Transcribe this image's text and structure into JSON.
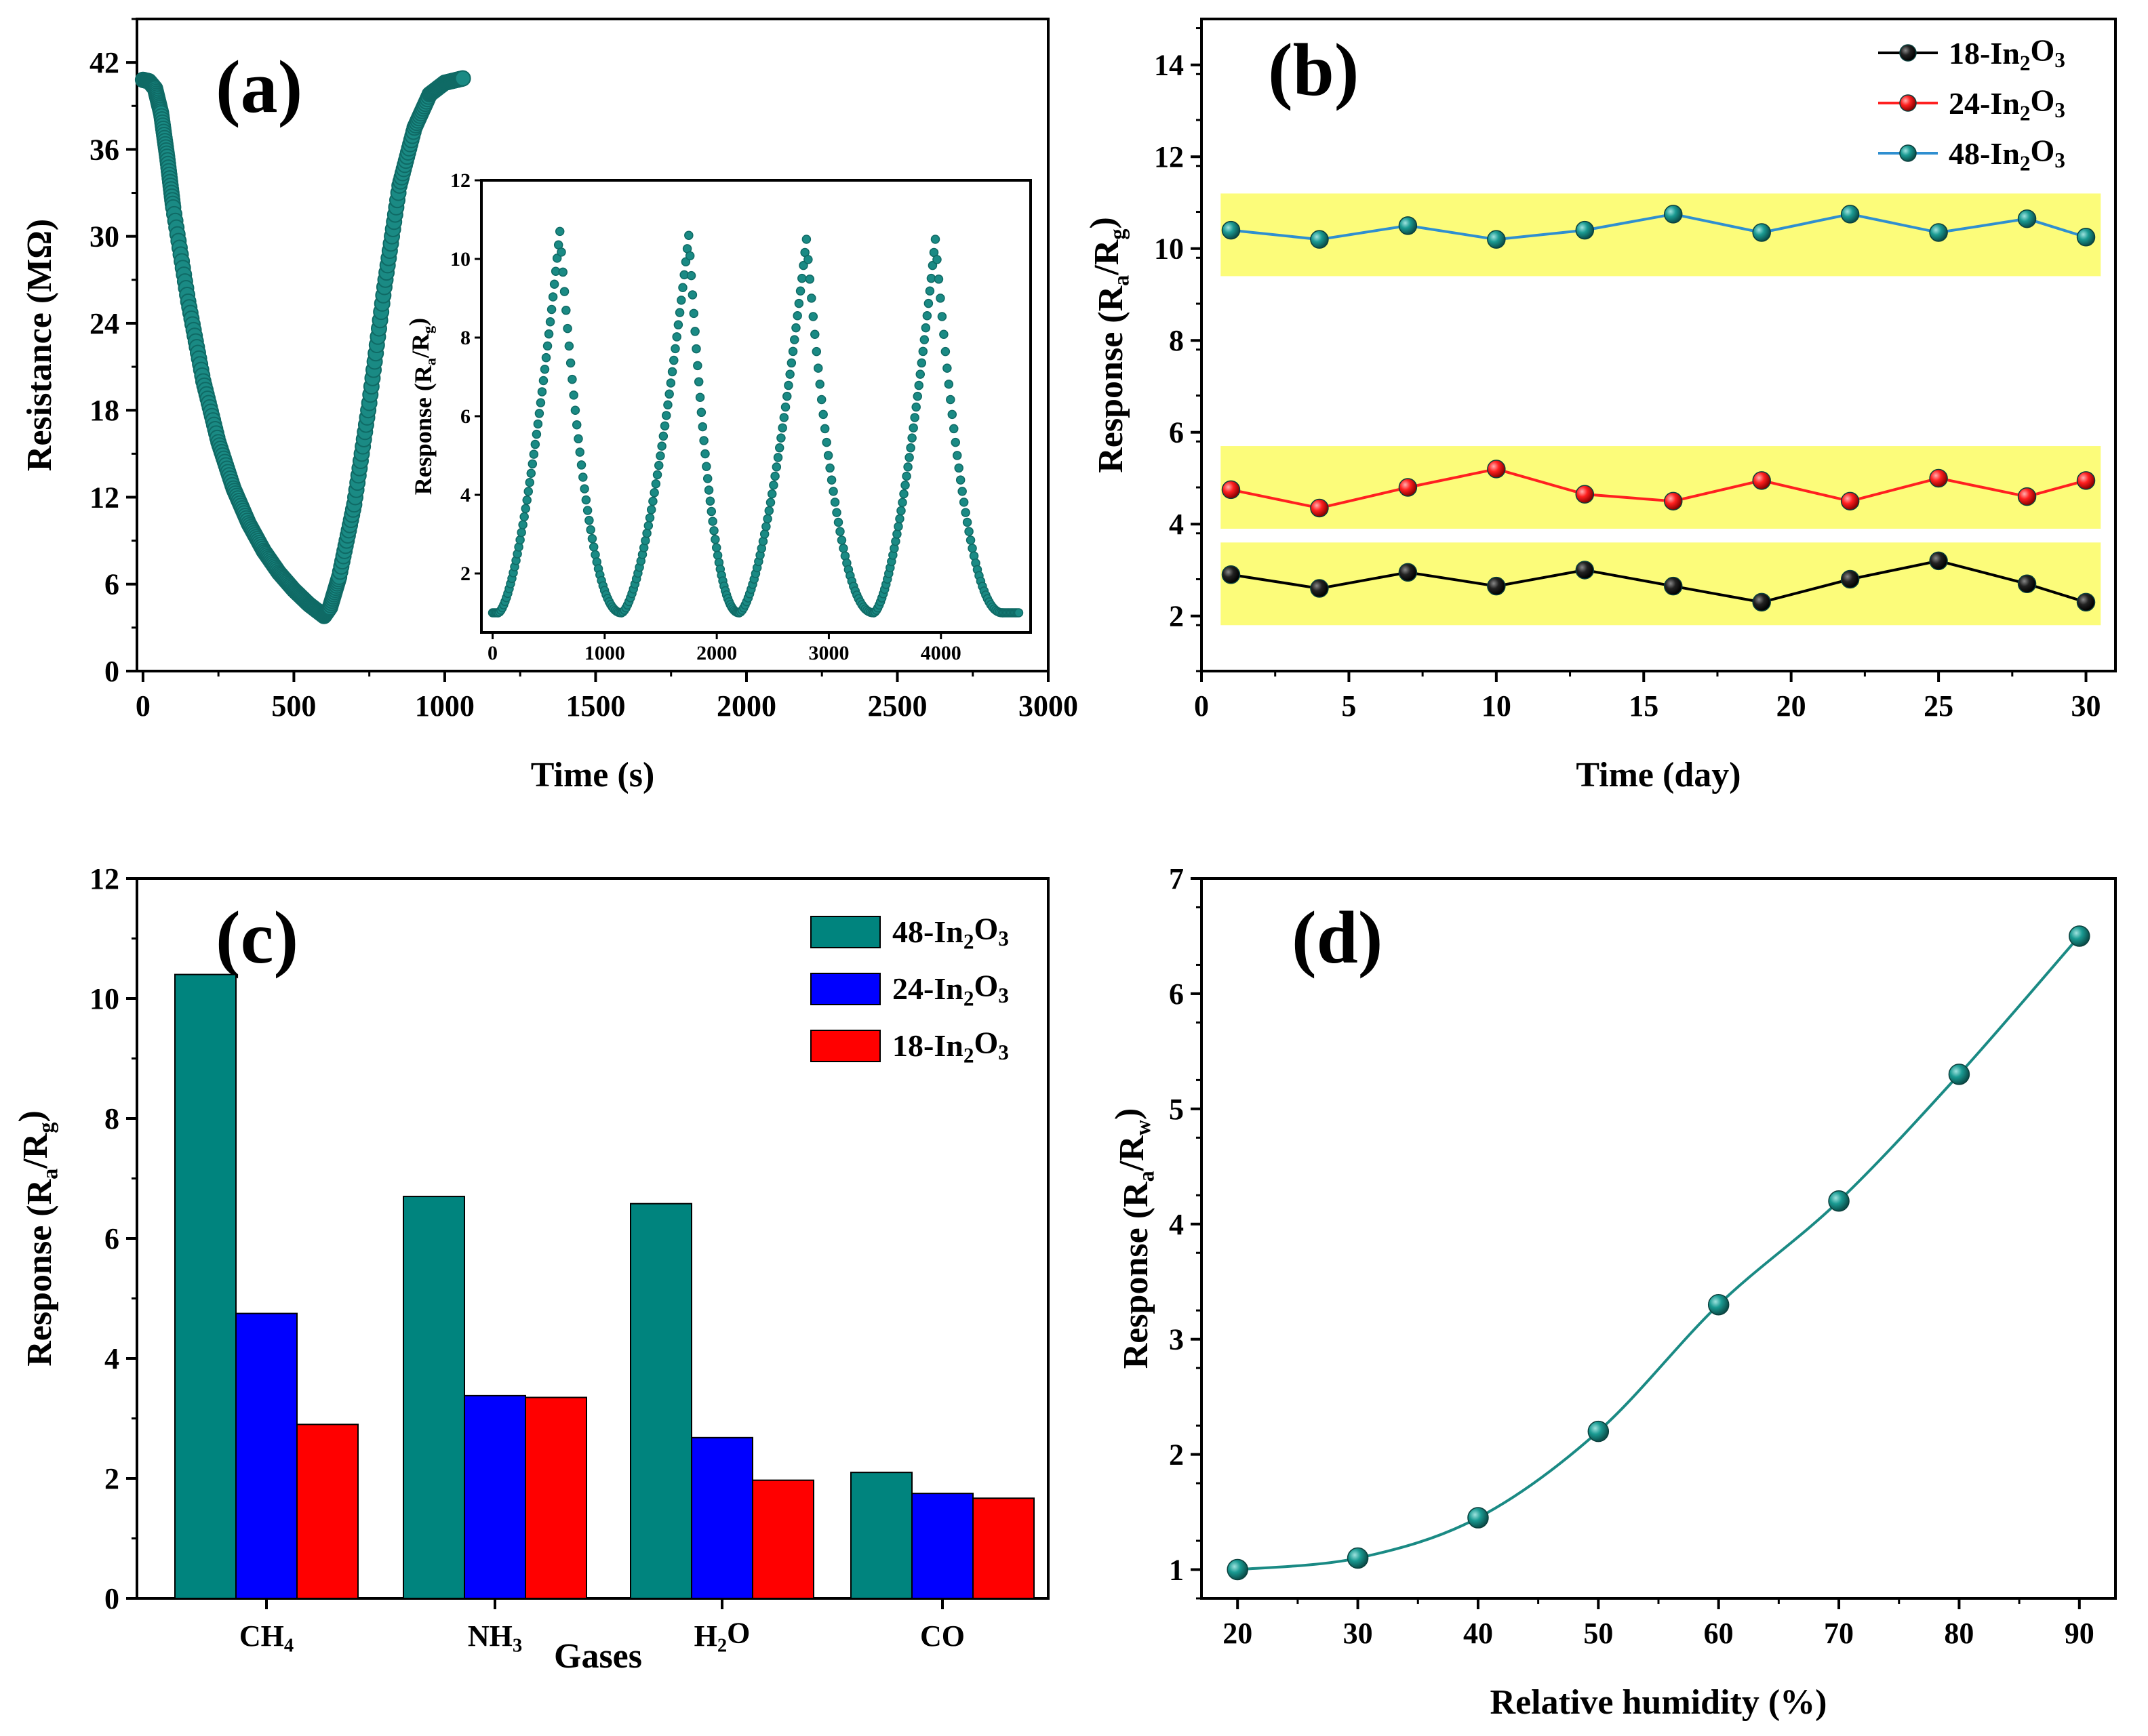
{
  "chart_data": [
    {
      "panel": "(a)",
      "type": "line",
      "xlabel": "Time (s)",
      "ylabel": "Resistance (MΩ)",
      "xlim": [
        -20,
        3000
      ],
      "ylim": [
        0,
        45
      ],
      "xticks": [
        "0",
        "500",
        "1000",
        "1500",
        "2000",
        "2500",
        "3000"
      ],
      "yticks": [
        "0",
        "6",
        "12",
        "18",
        "24",
        "30",
        "36",
        "42"
      ],
      "series": [
        {
          "name": "48-In2O3",
          "color": "#1a8a84",
          "x": [
            0,
            20,
            40,
            60,
            80,
            100,
            150,
            200,
            250,
            300,
            350,
            400,
            450,
            500,
            550,
            600,
            620,
            650,
            700,
            750,
            800,
            850,
            900,
            950,
            1000,
            1040,
            1060
          ],
          "y": [
            40.8,
            40.7,
            40.2,
            38.5,
            35.5,
            32.0,
            25.5,
            20.0,
            15.8,
            12.6,
            10.2,
            8.3,
            6.8,
            5.6,
            4.6,
            3.8,
            4.4,
            6.5,
            11.5,
            18.5,
            26.5,
            33.5,
            37.5,
            39.8,
            40.6,
            40.8,
            40.9
          ]
        }
      ],
      "inset": {
        "type": "line",
        "ylabel": "Response (R_a/R_g)",
        "xlim": [
          -100,
          4800
        ],
        "ylim": [
          0.5,
          12
        ],
        "xticks": [
          "0",
          "1000",
          "2000",
          "3000",
          "4000"
        ],
        "yticks": [
          "2",
          "4",
          "6",
          "8",
          "10",
          "12"
        ],
        "cycles": [
          {
            "start": 50,
            "peak_x": 600,
            "peak": 10.7,
            "end": 1150
          },
          {
            "start": 1150,
            "peak_x": 1750,
            "peak": 10.6,
            "end": 2200
          },
          {
            "start": 2200,
            "peak_x": 2800,
            "peak": 10.5,
            "end": 3400
          },
          {
            "start": 3400,
            "peak_x": 3950,
            "peak": 10.5,
            "end": 4550
          }
        ],
        "x_end": 4700,
        "baseline": 1.0
      }
    },
    {
      "panel": "(b)",
      "type": "line",
      "xlabel": "Time (day)",
      "ylabel": "Response (R_a/R_g)",
      "xlim": [
        0,
        31
      ],
      "ylim": [
        0.8,
        15
      ],
      "xticks": [
        0,
        5,
        10,
        15,
        20,
        25,
        30
      ],
      "yticks": [
        2,
        4,
        6,
        8,
        10,
        12,
        14
      ],
      "x": [
        1,
        4,
        7,
        10,
        13,
        16,
        19,
        22,
        25,
        28,
        30
      ],
      "series": [
        {
          "name": "18-In2O3",
          "color": "#000000",
          "values": [
            2.9,
            2.6,
            2.95,
            2.65,
            3.0,
            2.65,
            2.3,
            2.8,
            3.2,
            2.7,
            2.3
          ]
        },
        {
          "name": "24-In2O3",
          "color": "#ff2020",
          "values": [
            4.75,
            4.35,
            4.8,
            5.2,
            4.65,
            4.5,
            4.95,
            4.5,
            5.0,
            4.6,
            4.95
          ]
        },
        {
          "name": "48-In2O3",
          "color": "#2f8fd0",
          "values": [
            10.4,
            10.2,
            10.5,
            10.2,
            10.4,
            10.75,
            10.35,
            10.75,
            10.35,
            10.65,
            10.25
          ]
        }
      ],
      "bands": [
        [
          9.4,
          11.2
        ],
        [
          3.9,
          5.7
        ],
        [
          1.8,
          3.6
        ]
      ],
      "band_color": "#fcfc7a"
    },
    {
      "panel": "(c)",
      "type": "bar",
      "xlabel": "Gases",
      "ylabel": "Response (R_a/R_g)",
      "categories": [
        "CH4",
        "NH3",
        "H2O",
        "CO"
      ],
      "ylim": [
        0,
        12
      ],
      "yticks": [
        0,
        2,
        4,
        6,
        8,
        10,
        12
      ],
      "series": [
        {
          "name": "48-In2O3",
          "color": "#00847e",
          "values": [
            10.4,
            6.7,
            6.58,
            2.1
          ]
        },
        {
          "name": "24-In2O3",
          "color": "#0000ff",
          "values": [
            4.75,
            3.38,
            2.68,
            1.75
          ]
        },
        {
          "name": "18-In2O3",
          "color": "#ff0000",
          "values": [
            2.9,
            3.35,
            1.97,
            1.67
          ]
        }
      ]
    },
    {
      "panel": "(d)",
      "type": "line",
      "xlabel": "Relative humidity (%)",
      "ylabel": "Response (R_a/R_w)",
      "xlim": [
        17,
        93
      ],
      "ylim": [
        0.75,
        7
      ],
      "xticks": [
        20,
        30,
        40,
        50,
        60,
        70,
        80,
        90
      ],
      "yticks": [
        1,
        2,
        3,
        4,
        5,
        6,
        7
      ],
      "x": [
        20,
        30,
        40,
        50,
        60,
        70,
        80,
        90
      ],
      "series": [
        {
          "name": "48-In2O3",
          "color": "#1a8a84",
          "values": [
            1.0,
            1.1,
            1.45,
            2.2,
            3.3,
            4.2,
            5.3,
            6.5
          ]
        }
      ]
    }
  ]
}
